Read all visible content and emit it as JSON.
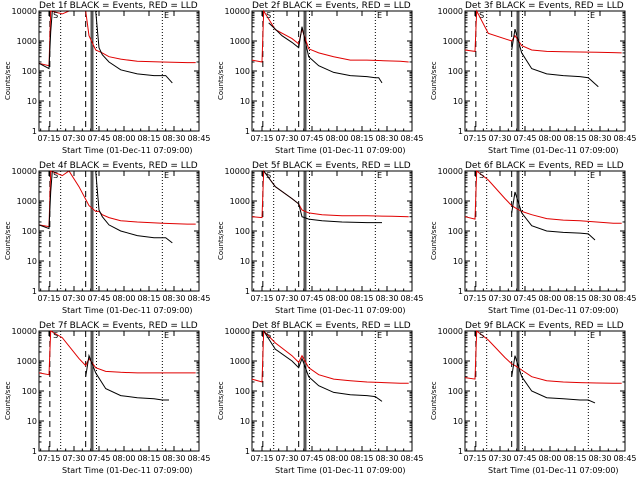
{
  "figure": {
    "y_label": "Counts/sec",
    "x_label": "Start Time (01-Dec-11 07:09:00)",
    "x_tick_labels": [
      "07:15",
      "07:30",
      "07:45",
      "08:00",
      "08:15",
      "08:30",
      "08:45"
    ],
    "y_tick_labels": [
      "1",
      "10",
      "100",
      "1000",
      "10000"
    ],
    "flag_labels": [
      "S",
      "E"
    ],
    "colors": {
      "events": "#000000",
      "lld": "#e00000",
      "axes": "#000000"
    }
  },
  "panels": [
    {
      "title": "Det 1f BLACK = Events, RED = LLD"
    },
    {
      "title": "Det 2f BLACK = Events, RED = LLD"
    },
    {
      "title": "Det 3f BLACK = Events, RED = LLD"
    },
    {
      "title": "Det 4f BLACK = Events, RED = LLD"
    },
    {
      "title": "Det 5f BLACK = Events, RED = LLD"
    },
    {
      "title": "Det 6f BLACK = Events, RED = LLD"
    },
    {
      "title": "Det 7f BLACK = Events, RED = LLD"
    },
    {
      "title": "Det 8f BLACK = Events, RED = LLD"
    },
    {
      "title": "Det 9f BLACK = Events, RED = LLD"
    }
  ],
  "chart_data": [
    {
      "type": "line",
      "title": "Det 1f BLACK = Events, RED = LLD",
      "xlabel": "Start Time (01-Dec-11 07:09:00)",
      "ylabel": "Counts/sec",
      "xlim": [
        6,
        102
      ],
      "ylim": [
        1,
        10000
      ],
      "y_scale": "log",
      "series": [
        {
          "name": "BLACK = Events",
          "x": [
            6,
            12,
            13,
            14,
            40,
            42,
            44,
            48,
            55,
            65,
            75,
            82,
            86
          ],
          "y": [
            180,
            120,
            2000,
            10000,
            10000,
            600,
            350,
            200,
            110,
            80,
            70,
            70,
            40
          ]
        },
        {
          "name": "RED = LLD",
          "x": [
            6,
            12,
            13,
            20,
            24,
            34,
            36,
            40,
            42,
            44,
            48,
            55,
            65,
            80,
            95,
            100
          ],
          "y": [
            180,
            150,
            10000,
            8000,
            10000,
            10000,
            1500,
            500,
            450,
            400,
            300,
            250,
            210,
            200,
            190,
            190
          ]
        }
      ]
    },
    {
      "type": "line",
      "title": "Det 2f BLACK = Events, RED = LLD",
      "xlabel": "Start Time (01-Dec-11 07:09:00)",
      "ylabel": "Counts/sec",
      "xlim": [
        6,
        102
      ],
      "ylim": [
        1,
        10000
      ],
      "y_scale": "log",
      "series": [
        {
          "name": "BLACK = Events",
          "x": [
            16,
            20,
            24,
            30,
            34,
            36,
            40,
            46,
            55,
            65,
            75,
            80,
            82,
            84
          ],
          "y": [
            4000,
            2500,
            1500,
            900,
            600,
            3000,
            300,
            150,
            90,
            70,
            65,
            60,
            60,
            40
          ]
        },
        {
          "name": "RED = LLD",
          "x": [
            6,
            12,
            13,
            20,
            30,
            34,
            36,
            40,
            46,
            55,
            65,
            75,
            85,
            95,
            100
          ],
          "y": [
            230,
            200,
            10000,
            2400,
            1200,
            800,
            2500,
            550,
            400,
            300,
            230,
            230,
            220,
            210,
            200
          ]
        }
      ]
    },
    {
      "type": "line",
      "title": "Det 3f BLACK = Events, RED = LLD",
      "xlabel": "Start Time (01-Dec-11 07:09:00)",
      "ylabel": "Counts/sec",
      "xlim": [
        6,
        102
      ],
      "ylim": [
        1,
        10000
      ],
      "y_scale": "log",
      "series": [
        {
          "name": "BLACK = Events",
          "x": [
            34,
            36,
            40,
            46,
            55,
            65,
            75,
            80,
            86
          ],
          "y": [
            500,
            2500,
            400,
            120,
            80,
            70,
            65,
            60,
            30
          ]
        },
        {
          "name": "RED = LLD",
          "x": [
            6,
            12,
            13,
            20,
            34,
            36,
            40,
            46,
            55,
            65,
            75,
            85,
            95,
            100
          ],
          "y": [
            500,
            450,
            10000,
            1800,
            1000,
            1500,
            700,
            500,
            450,
            440,
            430,
            420,
            410,
            400
          ]
        }
      ]
    },
    {
      "type": "line",
      "title": "Det 4f BLACK = Events, RED = LLD",
      "xlabel": "Start Time (01-Dec-11 07:09:00)",
      "ylabel": "Counts/sec",
      "xlim": [
        6,
        102
      ],
      "ylim": [
        1,
        10000
      ],
      "y_scale": "log",
      "series": [
        {
          "name": "BLACK = Events",
          "x": [
            6,
            12,
            13,
            14,
            40,
            42,
            44,
            48,
            55,
            65,
            75,
            82,
            86
          ],
          "y": [
            160,
            120,
            2000,
            10000,
            10000,
            500,
            300,
            160,
            100,
            70,
            60,
            60,
            40
          ]
        },
        {
          "name": "RED = LLD",
          "x": [
            6,
            12,
            13,
            20,
            24,
            30,
            36,
            40,
            42,
            44,
            48,
            55,
            65,
            80,
            95,
            100
          ],
          "y": [
            160,
            140,
            10000,
            7000,
            10000,
            3000,
            700,
            450,
            450,
            350,
            280,
            220,
            200,
            180,
            170,
            170
          ]
        }
      ]
    },
    {
      "type": "line",
      "title": "Det 5f BLACK = Events, RED = LLD",
      "xlabel": "Start Time (01-Dec-11 07:09:00)",
      "ylabel": "Counts/sec",
      "xlim": [
        6,
        102
      ],
      "ylim": [
        1,
        10000
      ],
      "y_scale": "log",
      "series": [
        {
          "name": "BLACK = Events",
          "x": [
            13,
            20,
            30,
            34,
            36,
            40,
            48,
            60,
            75,
            84
          ],
          "y": [
            10000,
            3000,
            1200,
            800,
            300,
            250,
            220,
            200,
            190,
            190
          ]
        },
        {
          "name": "RED = LLD",
          "x": [
            6,
            12,
            13,
            20,
            30,
            34,
            36,
            40,
            48,
            60,
            75,
            90,
            100
          ],
          "y": [
            300,
            280,
            10000,
            3000,
            1200,
            800,
            500,
            400,
            350,
            320,
            320,
            310,
            300
          ]
        }
      ]
    },
    {
      "type": "line",
      "title": "Det 6f BLACK = Events, RED = LLD",
      "xlabel": "Start Time (01-Dec-11 07:09:00)",
      "ylabel": "Counts/sec",
      "xlim": [
        6,
        102
      ],
      "ylim": [
        1,
        10000
      ],
      "y_scale": "log",
      "series": [
        {
          "name": "BLACK = Events",
          "x": [
            34,
            36,
            40,
            46,
            55,
            65,
            75,
            80,
            84
          ],
          "y": [
            400,
            2000,
            400,
            150,
            100,
            90,
            85,
            80,
            50
          ]
        },
        {
          "name": "RED = LLD",
          "x": [
            6,
            12,
            13,
            20,
            30,
            34,
            36,
            40,
            46,
            55,
            65,
            75,
            85,
            95,
            100
          ],
          "y": [
            300,
            250,
            10000,
            5000,
            1200,
            700,
            600,
            450,
            350,
            260,
            230,
            220,
            200,
            180,
            180
          ]
        }
      ]
    },
    {
      "type": "line",
      "title": "Det 7f BLACK = Events, RED = LLD",
      "xlabel": "Start Time (01-Dec-11 07:09:00)",
      "ylabel": "Counts/sec",
      "xlim": [
        6,
        102
      ],
      "ylim": [
        1,
        10000
      ],
      "y_scale": "log",
      "series": [
        {
          "name": "BLACK = Events",
          "x": [
            34,
            36,
            40,
            46,
            55,
            65,
            75,
            80,
            84
          ],
          "y": [
            300,
            1500,
            400,
            120,
            70,
            60,
            55,
            50,
            50
          ]
        },
        {
          "name": "RED = LLD",
          "x": [
            6,
            12,
            13,
            20,
            30,
            34,
            36,
            40,
            46,
            55,
            65,
            75,
            85,
            95,
            100
          ],
          "y": [
            400,
            350,
            10000,
            6000,
            1200,
            700,
            1200,
            600,
            450,
            420,
            400,
            400,
            400,
            400,
            400
          ]
        }
      ]
    },
    {
      "type": "line",
      "title": "Det 8f BLACK = Events, RED = LLD",
      "xlabel": "Start Time (01-Dec-11 07:09:00)",
      "ylabel": "Counts/sec",
      "xlim": [
        6,
        102
      ],
      "ylim": [
        1,
        10000
      ],
      "y_scale": "log",
      "series": [
        {
          "name": "BLACK = Events",
          "x": [
            13,
            20,
            30,
            34,
            36,
            40,
            46,
            55,
            65,
            75,
            80,
            84
          ],
          "y": [
            10000,
            2500,
            1000,
            600,
            1200,
            300,
            150,
            90,
            75,
            70,
            65,
            45
          ]
        },
        {
          "name": "RED = LLD",
          "x": [
            6,
            12,
            13,
            20,
            30,
            34,
            36,
            40,
            46,
            55,
            65,
            75,
            85,
            95,
            100
          ],
          "y": [
            250,
            200,
            10000,
            4000,
            1500,
            900,
            1500,
            600,
            350,
            250,
            220,
            200,
            190,
            180,
            180
          ]
        }
      ]
    },
    {
      "type": "line",
      "title": "Det 9f BLACK = Events, RED = LLD",
      "xlabel": "Start Time (01-Dec-11 07:09:00)",
      "ylabel": "Counts/sec",
      "xlim": [
        6,
        102
      ],
      "ylim": [
        1,
        10000
      ],
      "y_scale": "log",
      "series": [
        {
          "name": "BLACK = Events",
          "x": [
            34,
            36,
            40,
            46,
            55,
            65,
            75,
            80,
            84
          ],
          "y": [
            300,
            1500,
            300,
            100,
            60,
            55,
            50,
            50,
            40
          ]
        },
        {
          "name": "RED = LLD",
          "x": [
            6,
            12,
            13,
            20,
            30,
            34,
            36,
            40,
            46,
            55,
            65,
            75,
            85,
            95,
            100
          ],
          "y": [
            280,
            250,
            10000,
            5000,
            1300,
            800,
            700,
            500,
            300,
            220,
            200,
            190,
            185,
            180,
            180
          ]
        }
      ]
    }
  ]
}
